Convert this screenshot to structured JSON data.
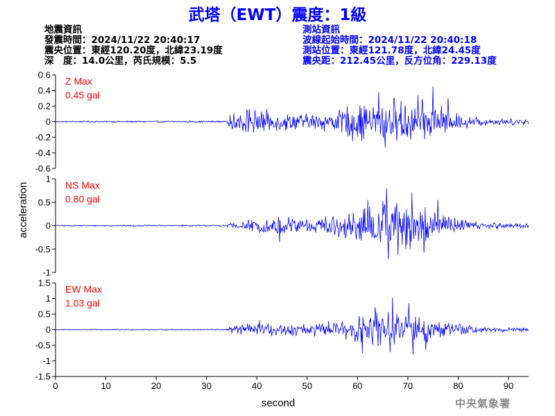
{
  "title": "武塔（EWT）震度：1級",
  "earthquake_info": {
    "heading": "地震資訊",
    "time": "發震時間：2024/11/22 20:40:17",
    "location": "震央位置：東經120.20度，北緯23.19度",
    "depth_magnitude": "深　度：14.0公里，芮氏規模：5.5"
  },
  "station_info": {
    "heading": "測站資訊",
    "wave_start": "波線起始時間：2024/11/22 20:40:18",
    "location": "測站位置：東經121.78度，北緯24.45度",
    "distance": "震央距：212.45公里，反方位角：229.13度"
  },
  "watermark": "中央氣象署",
  "colors": {
    "title": "#0000ff",
    "wave": "#0000ff",
    "max_label": "#ff0000",
    "station_info": "#0000ff"
  },
  "chart_data": {
    "type": "line",
    "xlabel": "second",
    "ylabel": "acceleration",
    "xlim": [
      0,
      94
    ],
    "xticks": [
      0,
      10,
      20,
      30,
      40,
      50,
      60,
      70,
      80,
      90
    ],
    "grid": false,
    "panels": [
      {
        "name": "Z Max",
        "max_label": "0.45 gal",
        "ylim": [
          -0.6,
          0.6
        ],
        "yticks": [
          -0.6,
          -0.4,
          -0.2,
          0,
          0.2,
          0.4,
          0.6
        ],
        "ytick_labels": [
          "-0.6",
          "-0.4",
          "-0.2",
          "0",
          "0.2",
          "0.4",
          "0.6"
        ],
        "noise": 0.006,
        "envelope": [
          [
            0,
            0.006
          ],
          [
            34,
            0.008
          ],
          [
            35,
            0.08
          ],
          [
            38,
            0.11
          ],
          [
            45,
            0.08
          ],
          [
            50,
            0.07
          ],
          [
            55,
            0.09
          ],
          [
            60,
            0.16
          ],
          [
            65,
            0.2
          ],
          [
            70,
            0.18
          ],
          [
            75,
            0.17
          ],
          [
            80,
            0.07
          ],
          [
            85,
            0.035
          ],
          [
            94,
            0.025
          ]
        ],
        "peaks": [
          [
            75,
            0.45
          ],
          [
            65.5,
            -0.33
          ],
          [
            64.2,
            0.38
          ],
          [
            72,
            0.34
          ],
          [
            59,
            -0.25
          ],
          [
            67.2,
            0.3
          ],
          [
            38.5,
            0.16
          ],
          [
            78,
            0.3
          ]
        ]
      },
      {
        "name": "NS Max",
        "max_label": "0.80 gal",
        "ylim": [
          -1,
          1
        ],
        "yticks": [
          -1,
          -0.5,
          0,
          0.5,
          1
        ],
        "ytick_labels": [
          "-1",
          "-0.5",
          "0",
          "0.5",
          "1"
        ],
        "noise": 0.01,
        "envelope": [
          [
            0,
            0.01
          ],
          [
            34,
            0.012
          ],
          [
            35,
            0.06
          ],
          [
            40,
            0.09
          ],
          [
            45,
            0.14
          ],
          [
            50,
            0.12
          ],
          [
            55,
            0.13
          ],
          [
            60,
            0.24
          ],
          [
            65,
            0.36
          ],
          [
            70,
            0.34
          ],
          [
            75,
            0.26
          ],
          [
            80,
            0.12
          ],
          [
            85,
            0.05
          ],
          [
            94,
            0.04
          ]
        ],
        "peaks": [
          [
            65.8,
            0.8
          ],
          [
            66.1,
            -0.72
          ],
          [
            70.8,
            0.7
          ],
          [
            73.2,
            -0.58
          ],
          [
            62,
            0.55
          ],
          [
            68,
            -0.62
          ],
          [
            44.5,
            -0.35
          ],
          [
            76,
            0.55
          ]
        ]
      },
      {
        "name": "EW Max",
        "max_label": "1.03 gal",
        "ylim": [
          -1.5,
          1.5
        ],
        "yticks": [
          -1.5,
          -1,
          -0.5,
          0,
          0.5,
          1,
          1.5
        ],
        "ytick_labels": [
          "-1.5",
          "-1",
          "-0.5",
          "0",
          "0.5",
          "1",
          "1.5"
        ],
        "noise": 0.012,
        "envelope": [
          [
            0,
            0.012
          ],
          [
            34,
            0.015
          ],
          [
            35,
            0.08
          ],
          [
            40,
            0.15
          ],
          [
            45,
            0.13
          ],
          [
            50,
            0.14
          ],
          [
            55,
            0.17
          ],
          [
            60,
            0.3
          ],
          [
            65,
            0.4
          ],
          [
            70,
            0.36
          ],
          [
            75,
            0.26
          ],
          [
            80,
            0.14
          ],
          [
            85,
            0.07
          ],
          [
            94,
            0.05
          ]
        ],
        "peaks": [
          [
            67,
            1.03
          ],
          [
            61,
            -0.75
          ],
          [
            66.5,
            -0.72
          ],
          [
            70.2,
            0.85
          ],
          [
            73.5,
            -0.65
          ],
          [
            63.5,
            0.72
          ],
          [
            71,
            -0.8
          ],
          [
            40.5,
            0.3
          ]
        ]
      }
    ]
  }
}
